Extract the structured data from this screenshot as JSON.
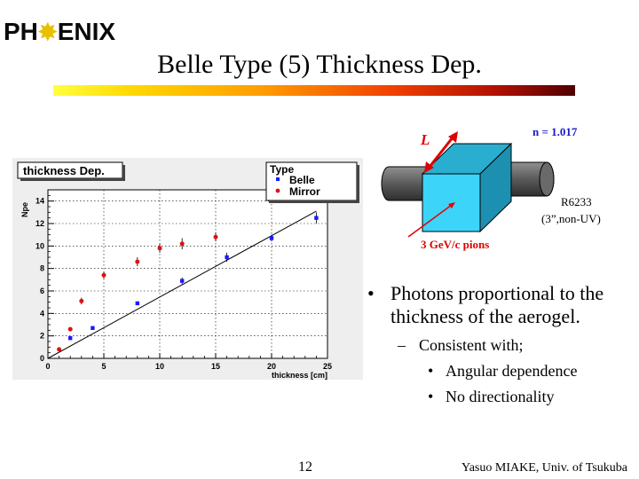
{
  "logo": {
    "before": "PH",
    "star": "✸",
    "after": "ENIX"
  },
  "title": "Belle Type (5) Thickness Dep.",
  "chart_data": {
    "type": "scatter",
    "title": "thickness Dep.",
    "xlabel": "thickness [cm]",
    "ylabel": "Npe",
    "xlim": [
      0,
      25
    ],
    "ylim": [
      0,
      15
    ],
    "xticks": [
      0,
      5,
      10,
      15,
      20,
      25
    ],
    "yticks": [
      0,
      2,
      4,
      6,
      8,
      10,
      12,
      14
    ],
    "legend": {
      "title": "Type",
      "position": "top-right"
    },
    "series": [
      {
        "name": "Belle",
        "color": "#1a1aff",
        "marker": "square",
        "x": [
          2,
          4,
          8,
          12,
          16,
          20,
          24
        ],
        "y": [
          1.8,
          2.7,
          4.9,
          6.9,
          9.0,
          10.7,
          12.5
        ],
        "err": [
          0.1,
          0.15,
          0.15,
          0.3,
          0.4,
          0.3,
          0.5
        ]
      },
      {
        "name": "Mirror",
        "color": "#e01010",
        "marker": "circle",
        "x": [
          1,
          2,
          3,
          5,
          8,
          10,
          12,
          15
        ],
        "y": [
          0.8,
          2.6,
          5.1,
          7.4,
          8.6,
          9.8,
          10.2,
          10.8
        ],
        "err": [
          0.1,
          0.1,
          0.3,
          0.3,
          0.4,
          0.4,
          0.5,
          0.4
        ]
      }
    ],
    "fit_line": {
      "x": [
        0,
        24
      ],
      "y": [
        0,
        13.1
      ]
    }
  },
  "diagram": {
    "length_label": "L",
    "index_label": "n = 1.017",
    "pmt_model": "R6233",
    "pmt_spec": "(3”,non-UV)",
    "beam_label": "3 GeV/c pions",
    "colors": {
      "front": "#3cd4f8",
      "top": "#2aaed0",
      "side": "#1c90b0",
      "pmt": "#606060",
      "arrow": "#e00000",
      "blue_text": "#1a1acc"
    }
  },
  "bullets": [
    {
      "level": 1,
      "marker": "•",
      "text": "Photons proportional to the thickness of the aerogel."
    },
    {
      "level": 2,
      "marker": "–",
      "text": "Consistent with;"
    },
    {
      "level": 3,
      "marker": "•",
      "text": "Angular dependence"
    },
    {
      "level": 3,
      "marker": "•",
      "text": "No directionality"
    }
  ],
  "footer": {
    "page": "12",
    "author": "Yasuo MIAKE, Univ. of Tsukuba"
  }
}
